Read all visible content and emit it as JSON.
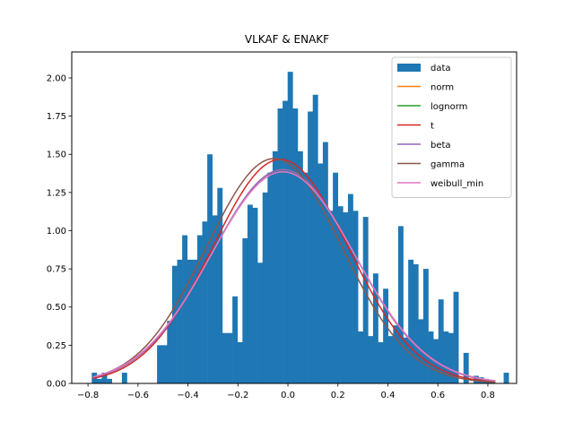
{
  "chart_data": {
    "type": "bar",
    "title": "VLKAF & ENAKF",
    "xlabel": "",
    "ylabel": "",
    "xlim": [
      -0.865,
      0.915
    ],
    "ylim": [
      0,
      2.17
    ],
    "x_ticks": [
      -0.8,
      -0.6,
      -0.4,
      -0.2,
      0.0,
      0.2,
      0.4,
      0.6,
      0.8
    ],
    "x_tick_labels": [
      "−0.8",
      "−0.6",
      "−0.4",
      "−0.2",
      "0.0",
      "0.2",
      "0.4",
      "0.6",
      "0.8"
    ],
    "y_ticks": [
      0.0,
      0.25,
      0.5,
      0.75,
      1.0,
      1.25,
      1.5,
      1.75,
      2.0
    ],
    "y_tick_labels": [
      "0.00",
      "0.25",
      "0.50",
      "0.75",
      "1.00",
      "1.25",
      "1.50",
      "1.75",
      "2.00"
    ],
    "grid": false,
    "legend_position": "top-right",
    "histogram": {
      "name": "data",
      "color": "#1f77b4",
      "bin_start": -0.785,
      "bin_width": 0.0201,
      "heights": [
        0.07,
        0.03,
        0.07,
        0.03,
        0.0,
        0.0,
        0.07,
        0.0,
        0.0,
        0.0,
        0.0,
        0.0,
        0.0,
        0.25,
        0.25,
        0.41,
        0.77,
        0.81,
        0.97,
        0.81,
        0.81,
        0.97,
        1.06,
        1.5,
        1.1,
        1.28,
        0.33,
        0.33,
        0.57,
        0.27,
        0.95,
        1.17,
        1.15,
        0.79,
        1.25,
        1.38,
        1.52,
        1.8,
        1.85,
        2.04,
        1.8,
        1.52,
        1.38,
        1.78,
        1.89,
        1.44,
        1.58,
        1.13,
        1.38,
        1.16,
        1.12,
        1.24,
        1.13,
        0.34,
        1.09,
        0.31,
        0.72,
        0.27,
        0.62,
        0.31,
        0.38,
        1.03,
        0.3,
        0.81,
        0.78,
        0.42,
        0.75,
        0.34,
        0.29,
        0.55,
        0.34,
        0.33,
        0.6,
        0.0,
        0.2,
        0.0,
        0.05,
        0.04,
        0.03,
        0.02,
        0.0,
        0.0,
        0.07
      ]
    },
    "series": [
      {
        "name": "norm",
        "color": "#ff7f0e",
        "mu": -0.02,
        "sigma": 0.285,
        "scale": 1.0
      },
      {
        "name": "lognorm",
        "color": "#2ca02c",
        "mu": -0.02,
        "sigma": 0.285,
        "scale": 1.0
      },
      {
        "name": "t",
        "color": "#d62728",
        "mu": -0.03,
        "sigma": 0.272,
        "scale": 1.0
      },
      {
        "name": "beta",
        "color": "#9467bd",
        "mu": -0.02,
        "sigma": 0.285,
        "scale": 1.0
      },
      {
        "name": "gamma",
        "color": "#8c564b",
        "mu": -0.055,
        "sigma": 0.271,
        "scale": 1.0
      },
      {
        "name": "weibull_min",
        "color": "#e377c2",
        "mu": -0.02,
        "sigma": 0.288,
        "scale": 1.0
      }
    ],
    "curve_x_range": [
      -0.78,
      0.83
    ]
  }
}
